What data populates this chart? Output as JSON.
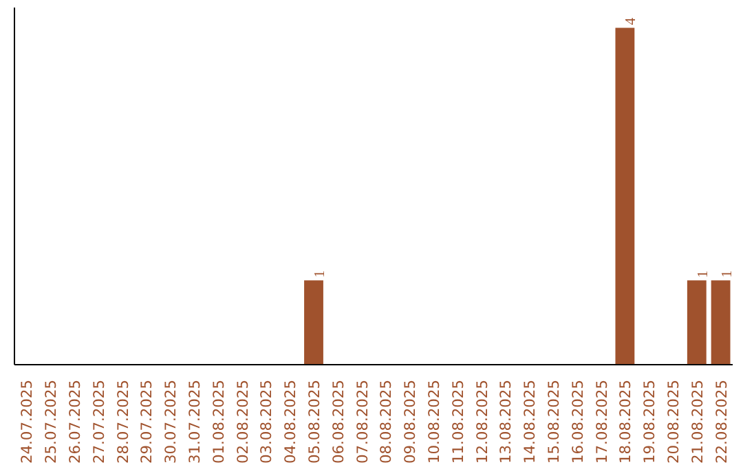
{
  "chart_data": {
    "type": "bar",
    "categories": [
      "24.07.2025",
      "25.07.2025",
      "26.07.2025",
      "27.07.2025",
      "28.07.2025",
      "29.07.2025",
      "30.07.2025",
      "31.07.2025",
      "01.08.2025",
      "02.08.2025",
      "03.08.2025",
      "04.08.2025",
      "05.08.2025",
      "06.08.2025",
      "07.08.2025",
      "08.08.2025",
      "09.08.2025",
      "10.08.2025",
      "11.08.2025",
      "12.08.2025",
      "13.08.2025",
      "14.08.2025",
      "15.08.2025",
      "16.08.2025",
      "17.08.2025",
      "18.08.2025",
      "19.08.2025",
      "20.08.2025",
      "21.08.2025",
      "22.08.2025"
    ],
    "values": [
      null,
      null,
      null,
      null,
      null,
      null,
      null,
      null,
      null,
      null,
      null,
      null,
      1,
      null,
      null,
      null,
      null,
      null,
      null,
      null,
      null,
      null,
      null,
      null,
      null,
      4,
      null,
      null,
      1,
      1
    ],
    "value_labels": [
      null,
      null,
      null,
      null,
      null,
      null,
      null,
      null,
      null,
      null,
      null,
      null,
      "1",
      null,
      null,
      null,
      null,
      null,
      null,
      null,
      null,
      null,
      null,
      null,
      null,
      "4",
      null,
      null,
      "1",
      "1"
    ],
    "color": "#a0522d",
    "grid": false,
    "tick_labels": "x"
  }
}
